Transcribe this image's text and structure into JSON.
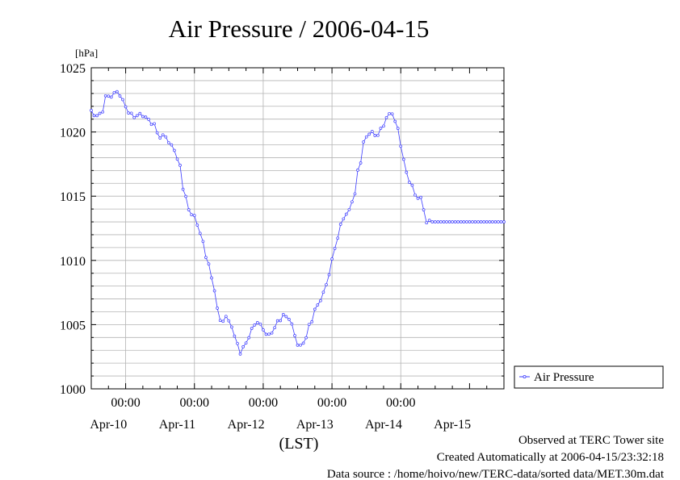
{
  "chart_data": {
    "type": "line",
    "title": "Air Pressure / 2006-04-15",
    "ylabel": "[hPa]",
    "xlabel": "(LST)",
    "ylim": [
      1000,
      1025
    ],
    "yticks": [
      1000,
      1005,
      1010,
      1015,
      1020,
      1025
    ],
    "xlim_days": [
      9.5,
      15.5
    ],
    "time_labels": [
      {
        "day": 10,
        "label": "00:00"
      },
      {
        "day": 11,
        "label": "00:00"
      },
      {
        "day": 12,
        "label": "00:00"
      },
      {
        "day": 13,
        "label": "00:00"
      },
      {
        "day": 14,
        "label": "00:00"
      }
    ],
    "date_labels": [
      {
        "day": 9.75,
        "label": "Apr-10"
      },
      {
        "day": 10.75,
        "label": "Apr-11"
      },
      {
        "day": 11.75,
        "label": "Apr-12"
      },
      {
        "day": 12.75,
        "label": "Apr-13"
      },
      {
        "day": 13.75,
        "label": "Apr-14"
      },
      {
        "day": 14.75,
        "label": "Apr-15"
      }
    ],
    "grid": true,
    "legend_position": "right",
    "series": [
      {
        "name": "Air Pressure",
        "color": "#3b3bff",
        "keypoints": [
          [
            9.5,
            1021.6
          ],
          [
            9.58,
            1021.2
          ],
          [
            9.65,
            1021.5
          ],
          [
            9.72,
            1022.8
          ],
          [
            9.8,
            1022.8
          ],
          [
            9.88,
            1023.2
          ],
          [
            9.96,
            1022.4
          ],
          [
            10.06,
            1021.4
          ],
          [
            10.15,
            1021.2
          ],
          [
            10.22,
            1021.4
          ],
          [
            10.32,
            1021.0
          ],
          [
            10.4,
            1020.6
          ],
          [
            10.5,
            1019.6
          ],
          [
            10.58,
            1019.7
          ],
          [
            10.62,
            1019.2
          ],
          [
            10.7,
            1018.7
          ],
          [
            10.78,
            1017.5
          ],
          [
            10.84,
            1015.6
          ],
          [
            10.92,
            1013.9
          ],
          [
            11.0,
            1013.4
          ],
          [
            11.08,
            1012.2
          ],
          [
            11.18,
            1010.2
          ],
          [
            11.27,
            1008.3
          ],
          [
            11.33,
            1006.3
          ],
          [
            11.38,
            1005.2
          ],
          [
            11.46,
            1005.6
          ],
          [
            11.53,
            1005.0
          ],
          [
            11.61,
            1003.7
          ],
          [
            11.66,
            1002.8
          ],
          [
            11.72,
            1003.2
          ],
          [
            11.78,
            1004.0
          ],
          [
            11.84,
            1004.6
          ],
          [
            11.9,
            1005.3
          ],
          [
            11.94,
            1005.0
          ],
          [
            12.0,
            1004.7
          ],
          [
            12.06,
            1004.1
          ],
          [
            12.14,
            1004.5
          ],
          [
            12.22,
            1005.3
          ],
          [
            12.3,
            1005.7
          ],
          [
            12.38,
            1005.5
          ],
          [
            12.46,
            1004.2
          ],
          [
            12.52,
            1003.2
          ],
          [
            12.6,
            1003.7
          ],
          [
            12.68,
            1005.0
          ],
          [
            12.76,
            1006.2
          ],
          [
            12.84,
            1007.0
          ],
          [
            12.92,
            1008.1
          ],
          [
            13.0,
            1010.0
          ],
          [
            13.08,
            1011.8
          ],
          [
            13.16,
            1013.3
          ],
          [
            13.24,
            1013.8
          ],
          [
            13.32,
            1015.0
          ],
          [
            13.4,
            1017.5
          ],
          [
            13.48,
            1019.5
          ],
          [
            13.56,
            1020.0
          ],
          [
            13.64,
            1019.7
          ],
          [
            13.72,
            1020.2
          ],
          [
            13.8,
            1021.2
          ],
          [
            13.88,
            1021.5
          ],
          [
            13.94,
            1020.5
          ],
          [
            14.0,
            1019.0
          ],
          [
            14.08,
            1016.8
          ],
          [
            14.16,
            1015.8
          ],
          [
            14.22,
            1015.0
          ],
          [
            14.3,
            1014.8
          ],
          [
            14.37,
            1013.0
          ],
          [
            14.42,
            1013.0
          ],
          [
            15.5,
            1013.0
          ]
        ]
      }
    ],
    "annotations": [
      "Observed at TERC Tower site",
      "Created Automatically at 2006-04-15/23:32:18",
      "Data source : /home/hoivo/new/TERC-data/sorted data/MET.30m.dat"
    ]
  }
}
